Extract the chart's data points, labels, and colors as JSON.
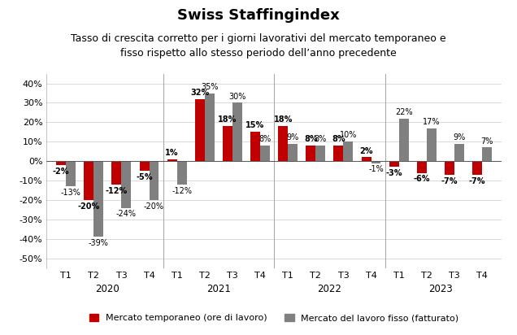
{
  "title": "Swiss Staffingindex",
  "subtitle": "Tasso di crescita corretto per i giorni lavorativi del mercato temporaneo e\nfisso rispetto allo stesso periodo dell’anno precedente",
  "years": [
    "2020",
    "2021",
    "2022",
    "2023"
  ],
  "quarters": [
    "T1",
    "T2",
    "T3",
    "T4"
  ],
  "red_values": [
    -2,
    -20,
    -12,
    -5,
    1,
    32,
    18,
    15,
    18,
    8,
    8,
    2,
    -3,
    -6,
    -7,
    -7
  ],
  "gray_values": [
    -13,
    -39,
    -24,
    -20,
    -12,
    35,
    30,
    8,
    9,
    8,
    10,
    -1,
    22,
    17,
    9,
    7
  ],
  "red_color": "#C00000",
  "gray_color": "#808080",
  "background_color": "#ffffff",
  "ylim": [
    -55,
    45
  ],
  "yticks": [
    -50,
    -40,
    -30,
    -20,
    -10,
    0,
    10,
    20,
    30,
    40
  ],
  "legend_red": "Mercato temporaneo (ore di lavoro)",
  "legend_gray": "Mercato del lavoro fisso (fatturato)",
  "bar_width": 0.35,
  "title_fontsize": 13,
  "subtitle_fontsize": 9,
  "label_fontsize": 7,
  "axis_fontsize": 8,
  "legend_fontsize": 8
}
